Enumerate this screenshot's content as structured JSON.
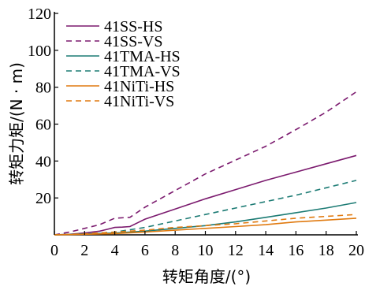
{
  "chart_data": {
    "type": "line",
    "xlabel": "转矩角度/(°)",
    "ylabel": "转矩力矩/(N · m)",
    "xlim": [
      0,
      20
    ],
    "ylim": [
      0,
      120
    ],
    "xticks": [
      "0",
      "2",
      "4",
      "6",
      "8",
      "10",
      "12",
      "14",
      "16",
      "18",
      "20"
    ],
    "yticks": [
      "20",
      "40",
      "60",
      "80",
      "100",
      "120"
    ],
    "grid": false,
    "legend_position": "top-left",
    "series": [
      {
        "name": "41SS-HS",
        "color": "#7b1a6e",
        "dash": "solid",
        "points": [
          [
            0,
            0
          ],
          [
            1,
            0.3
          ],
          [
            2,
            1.0
          ],
          [
            3,
            2.0
          ],
          [
            3.5,
            3.0
          ],
          [
            4,
            4.0
          ],
          [
            4.5,
            4.2
          ],
          [
            5,
            4.5
          ],
          [
            5.5,
            6.5
          ],
          [
            6,
            8.5
          ],
          [
            8,
            14
          ],
          [
            10,
            19.5
          ],
          [
            12,
            24.5
          ],
          [
            14,
            29.5
          ],
          [
            16,
            34
          ],
          [
            18,
            38.5
          ],
          [
            20,
            43
          ]
        ]
      },
      {
        "name": "41SS-VS",
        "color": "#7b1a6e",
        "dash": "dashed",
        "points": [
          [
            0,
            0
          ],
          [
            1,
            1.5
          ],
          [
            2,
            3.5
          ],
          [
            3,
            5.5
          ],
          [
            4,
            9
          ],
          [
            5,
            9.5
          ],
          [
            6,
            15
          ],
          [
            8,
            24
          ],
          [
            10,
            33
          ],
          [
            12,
            40.5
          ],
          [
            14,
            48
          ],
          [
            16,
            57
          ],
          [
            18,
            66.5
          ],
          [
            20,
            77.5
          ]
        ]
      },
      {
        "name": "41TMA-HS",
        "color": "#1c7b74",
        "dash": "solid",
        "points": [
          [
            0,
            0
          ],
          [
            2,
            0.5
          ],
          [
            4,
            1.0
          ],
          [
            6,
            2.0
          ],
          [
            8,
            3.5
          ],
          [
            10,
            5.0
          ],
          [
            12,
            7.0
          ],
          [
            14,
            9.5
          ],
          [
            16,
            12.0
          ],
          [
            18,
            14.5
          ],
          [
            20,
            17.5
          ]
        ]
      },
      {
        "name": "41TMA-VS",
        "color": "#1c7b74",
        "dash": "dashed",
        "points": [
          [
            0,
            0
          ],
          [
            2,
            0.5
          ],
          [
            4,
            1.5
          ],
          [
            6,
            4.0
          ],
          [
            8,
            7.5
          ],
          [
            10,
            11.0
          ],
          [
            12,
            14.5
          ],
          [
            14,
            18.0
          ],
          [
            16,
            21.5
          ],
          [
            18,
            25.5
          ],
          [
            20,
            29.5
          ]
        ]
      },
      {
        "name": "41NiTi-HS",
        "color": "#e07a10",
        "dash": "solid",
        "points": [
          [
            0,
            0
          ],
          [
            2,
            0.3
          ],
          [
            4,
            0.7
          ],
          [
            6,
            1.5
          ],
          [
            8,
            2.5
          ],
          [
            10,
            3.5
          ],
          [
            12,
            4.5
          ],
          [
            14,
            5.5
          ],
          [
            16,
            7.0
          ],
          [
            18,
            8.0
          ],
          [
            20,
            9.0
          ]
        ]
      },
      {
        "name": "41NiTi-VS",
        "color": "#e07a10",
        "dash": "dashed",
        "points": [
          [
            0,
            0
          ],
          [
            2,
            0.5
          ],
          [
            4,
            1.5
          ],
          [
            6,
            2.5
          ],
          [
            8,
            4.0
          ],
          [
            10,
            5.0
          ],
          [
            12,
            6.0
          ],
          [
            14,
            7.5
          ],
          [
            16,
            9.0
          ],
          [
            18,
            10.0
          ],
          [
            20,
            11.0
          ]
        ]
      }
    ]
  }
}
